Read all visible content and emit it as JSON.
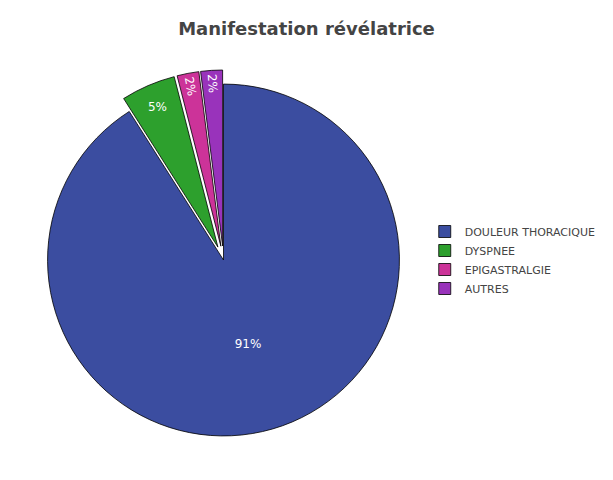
{
  "chart_data": {
    "type": "pie",
    "title": "Manifestation révélatrice",
    "categories": [
      "DOULEUR THORACIQUE",
      "DYSPNEE",
      "EPIGASTRALGIE",
      "AUTRES"
    ],
    "values": [
      91,
      5,
      2,
      2
    ],
    "value_labels": [
      "91%",
      "5%",
      "2%",
      "2%"
    ],
    "colors": [
      "#3b4da0",
      "#2da02d",
      "#cc3399",
      "#9933bb"
    ],
    "legend": "right",
    "data_labels": true
  }
}
